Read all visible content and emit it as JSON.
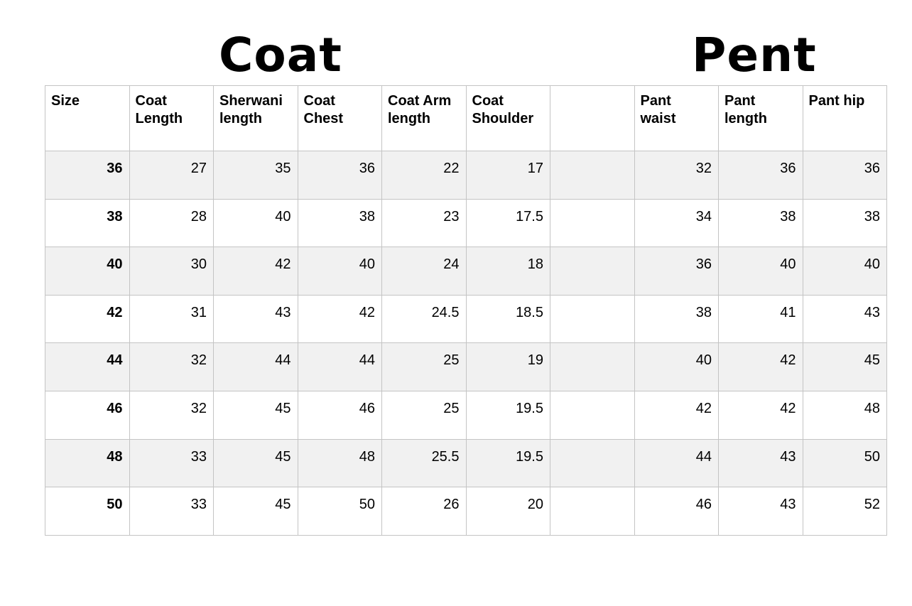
{
  "titles": {
    "coat": "Coat",
    "pent": "Pent"
  },
  "table": {
    "headers": [
      "Size",
      "Coat\nLength",
      "Sherwani\nlength",
      "Coat\nChest",
      "Coat Arm\nlength",
      "Coat\nShoulder",
      "",
      "Pant\nwaist",
      "Pant\nlength",
      "Pant hip"
    ],
    "rows": [
      [
        "36",
        "27",
        "35",
        "36",
        "22",
        "17",
        "",
        "32",
        "36",
        "36"
      ],
      [
        "38",
        "28",
        "40",
        "38",
        "23",
        "17.5",
        "",
        "34",
        "38",
        "38"
      ],
      [
        "40",
        "30",
        "42",
        "40",
        "24",
        "18",
        "",
        "36",
        "40",
        "40"
      ],
      [
        "42",
        "31",
        "43",
        "42",
        "24.5",
        "18.5",
        "",
        "38",
        "41",
        "43"
      ],
      [
        "44",
        "32",
        "44",
        "44",
        "25",
        "19",
        "",
        "40",
        "42",
        "45"
      ],
      [
        "46",
        "32",
        "45",
        "46",
        "25",
        "19.5",
        "",
        "42",
        "42",
        "48"
      ],
      [
        "48",
        "33",
        "45",
        "48",
        "25.5",
        "19.5",
        "",
        "44",
        "43",
        "50"
      ],
      [
        "50",
        "33",
        "45",
        "50",
        "26",
        "20",
        "",
        "46",
        "43",
        "52"
      ]
    ],
    "row_shading": [
      "#f1f1f1",
      "#ffffff"
    ],
    "border_color": "#c4c4c4"
  }
}
